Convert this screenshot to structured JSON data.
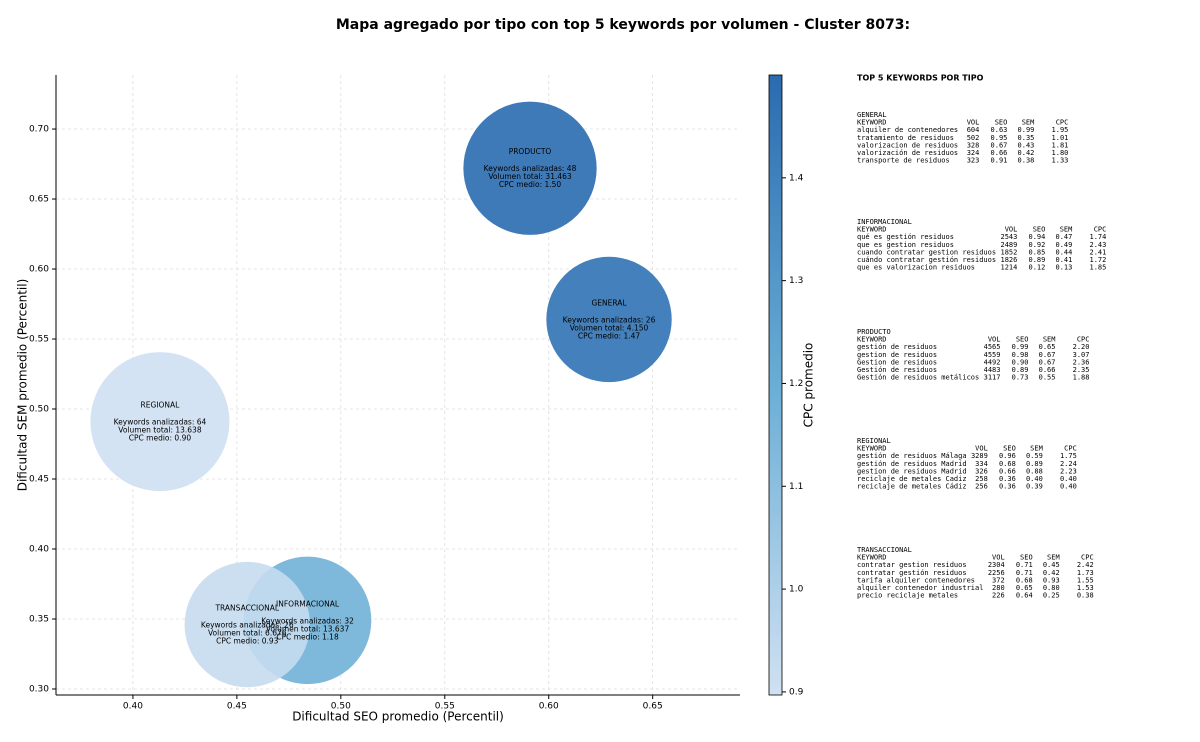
{
  "chart_data": {
    "type": "bubble",
    "title": "Mapa agregado por tipo con top 5 keywords por volumen - Cluster 8073:",
    "x_label": "Dificultad SEO promedio (Percentil)",
    "y_label": "Dificultad SEM promedio (Percentil)",
    "colorbar_label": "CPC promedio",
    "xlim": [
      0.363,
      0.692
    ],
    "ylim": [
      0.2957,
      0.7386
    ],
    "xticks": [
      {
        "value": 0.4,
        "label": "0.40"
      },
      0.45,
      {
        "value": 0.5,
        "label": "0.50"
      },
      0.55,
      {
        "value": 0.6,
        "label": "0.60"
      },
      0.65
    ],
    "yticks": [
      {
        "value": 0.3,
        "label": "0.30"
      },
      0.35,
      {
        "value": 0.4,
        "label": "0.40"
      },
      0.45,
      {
        "value": 0.5,
        "label": "0.50"
      },
      0.55,
      {
        "value": 0.6,
        "label": "0.60"
      },
      0.65,
      {
        "value": 0.7,
        "label": "0.70"
      }
    ],
    "clim": [
      0.897,
      1.5
    ],
    "cticks": [
      0.9,
      {
        "value": 1.0,
        "label": "1.0"
      },
      1.1,
      1.2,
      1.3,
      1.4
    ],
    "colormap": [
      "#d0e1f2",
      "#6aaed6",
      "#2a6bb0"
    ],
    "grid": true,
    "points": [
      {
        "name": "GENERAL",
        "x": 0.629,
        "y": 0.564,
        "keywords": 26,
        "cpc": 1.47,
        "lines": [
          "Keywords analizadas: 26",
          "Volumen total: 4.150",
          "CPC medio: 1.47"
        ]
      },
      {
        "name": "INFORMACIONAL",
        "x": 0.484,
        "y": 0.349,
        "keywords": 32,
        "cpc": 1.18,
        "lines": [
          "Keywords analizadas: 32",
          "Volumen total: 13.637",
          "CPC medio: 1.18"
        ]
      },
      {
        "name": "PRODUCTO",
        "x": 0.591,
        "y": 0.672,
        "keywords": 48,
        "cpc": 1.5,
        "lines": [
          "Keywords analizadas: 48",
          "Volumen total: 31.463",
          "CPC medio: 1.50"
        ]
      },
      {
        "name": "REGIONAL",
        "x": 0.413,
        "y": 0.491,
        "keywords": 64,
        "cpc": 0.9,
        "lines": [
          "Keywords analizadas: 64",
          "Volumen total: 13.638",
          "CPC medio: 0.90"
        ]
      },
      {
        "name": "TRANSACCIONAL",
        "x": 0.455,
        "y": 0.346,
        "keywords": 26,
        "cpc": 0.93,
        "lines": [
          "Keywords analizadas: 26",
          "Volumen total: 6.676",
          "CPC medio: 0.93"
        ]
      }
    ]
  },
  "panel": {
    "title": "TOP 5 KEYWORDS POR TIPO",
    "sections": [
      {
        "name": "GENERAL",
        "columns": [
          "KEYWORD",
          "VOL",
          "SEO",
          "SEM",
          "CPC"
        ],
        "rows": [
          [
            "alquiler de contenedores",
            "604",
            "0.63",
            "0.99",
            "1.95"
          ],
          [
            "tratamiento de residuos",
            "502",
            "0.95",
            "0.35",
            "1.01"
          ],
          [
            "valorizacion de residuos",
            "328",
            "0.67",
            "0.43",
            "1.81"
          ],
          [
            "valorización de residuos",
            "324",
            "0.66",
            "0.42",
            "1.80"
          ],
          [
            "transporte de residuos",
            "323",
            "0.91",
            "0.38",
            "1.33"
          ]
        ]
      },
      {
        "name": "INFORMACIONAL",
        "columns": [
          "KEYWORD",
          "VOL",
          "SEO",
          "SEM",
          "CPC"
        ],
        "rows": [
          [
            "qué es gestión residuos",
            "2543",
            "0.94",
            "0.47",
            "1.74"
          ],
          [
            "que es gestion residuos",
            "2489",
            "0.92",
            "0.49",
            "2.43"
          ],
          [
            "cuando contratar gestion residuos",
            "1852",
            "0.85",
            "0.44",
            "2.41"
          ],
          [
            "cuándo contratar gestión residuos",
            "1826",
            "0.89",
            "0.41",
            "1.72"
          ],
          [
            "que es valorizacion residuos",
            "1214",
            "0.12",
            "0.13",
            "1.85"
          ]
        ]
      },
      {
        "name": "PRODUCTO",
        "columns": [
          "KEYWORD",
          "VOL",
          "SEO",
          "SEM",
          "CPC"
        ],
        "rows": [
          [
            "gestión de residuos",
            "4565",
            "0.99",
            "0.65",
            "2.20"
          ],
          [
            "gestion de residuos",
            "4559",
            "0.98",
            "0.67",
            "3.07"
          ],
          [
            "Gestion de residuos",
            "4492",
            "0.90",
            "0.67",
            "2.36"
          ],
          [
            "Gestión de residuos",
            "4483",
            "0.89",
            "0.66",
            "2.35"
          ],
          [
            "Gestión de residuos metálicos",
            "3117",
            "0.73",
            "0.55",
            "1.88"
          ]
        ]
      },
      {
        "name": "REGIONAL",
        "columns": [
          "KEYWORD",
          "VOL",
          "SEO",
          "SEM",
          "CPC"
        ],
        "rows": [
          [
            "gestión de residuos Málaga",
            "3289",
            "0.96",
            "0.59",
            "1.75"
          ],
          [
            "gestión de residuos Madrid",
            "334",
            "0.68",
            "0.89",
            "2.24"
          ],
          [
            "gestion de residuos Madrid",
            "326",
            "0.66",
            "0.88",
            "2.23"
          ],
          [
            "reciclaje de metales Cadiz",
            "258",
            "0.36",
            "0.40",
            "0.40"
          ],
          [
            "reciclaje de metales Cádiz",
            "256",
            "0.36",
            "0.39",
            "0.40"
          ]
        ]
      },
      {
        "name": "TRANSACCIONAL",
        "columns": [
          "KEYWORD",
          "VOL",
          "SEO",
          "SEM",
          "CPC"
        ],
        "rows": [
          [
            "contratar gestion residuos",
            "2304",
            "0.71",
            "0.45",
            "2.42"
          ],
          [
            "contratar gestión residuos",
            "2256",
            "0.71",
            "0.42",
            "1.73"
          ],
          [
            "tarifa alquiler contenedores",
            "372",
            "0.68",
            "0.93",
            "1.55"
          ],
          [
            "alquiler contenedor industrial",
            "280",
            "0.65",
            "0.80",
            "1.53"
          ],
          [
            "precio reciclaje metales",
            "226",
            "0.64",
            "0.25",
            "0.38"
          ]
        ]
      }
    ]
  }
}
